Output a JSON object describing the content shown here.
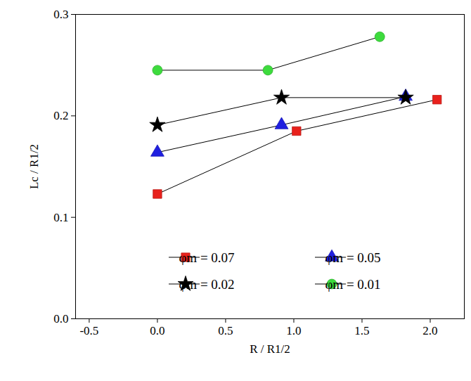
{
  "chart_data": {
    "type": "line",
    "x_label": "R / R1/2",
    "y_label": "Lc / R1/2",
    "xlim": [
      -0.6,
      2.25
    ],
    "ylim": [
      0,
      0.3
    ],
    "xticks": [
      {
        "value": -0.5,
        "label": "-0.5"
      },
      {
        "value": 0,
        "label": "0.0"
      },
      {
        "value": 0.5,
        "label": "0.5"
      },
      {
        "value": 1,
        "label": "1.0"
      },
      {
        "value": 1.5,
        "label": "1.5"
      },
      {
        "value": 2,
        "label": "2.0"
      }
    ],
    "yticks": [
      {
        "value": 0,
        "label": "0.0"
      },
      {
        "value": 0.1,
        "label": "0.1"
      },
      {
        "value": 0.2,
        "label": "0.2"
      },
      {
        "value": 0.3,
        "label": "0.3"
      }
    ],
    "grid": false,
    "legend": "lower right",
    "line_style": "solid",
    "series": [
      {
        "name": "φm = 0.07",
        "color": "#e8211c",
        "marker": "square",
        "x": [
          0,
          1.02,
          2.05
        ],
        "values": [
          0.123,
          0.185,
          0.216
        ]
      },
      {
        "name": "φm = 0.05",
        "color": "#1f1fe0",
        "marker": "triangle",
        "x": [
          0,
          0.91,
          1.82
        ],
        "values": [
          0.164,
          0.191,
          0.219
        ]
      },
      {
        "name": "φm = 0.02",
        "color": "#000000",
        "marker": "star",
        "x": [
          0,
          0.91,
          1.82
        ],
        "values": [
          0.191,
          0.218,
          0.218
        ]
      },
      {
        "name": "φm = 0.01",
        "color": "#3ddb3d",
        "marker": "circle",
        "x": [
          0,
          0.81,
          1.63
        ],
        "values": [
          0.245,
          0.245,
          0.278
        ]
      }
    ]
  }
}
